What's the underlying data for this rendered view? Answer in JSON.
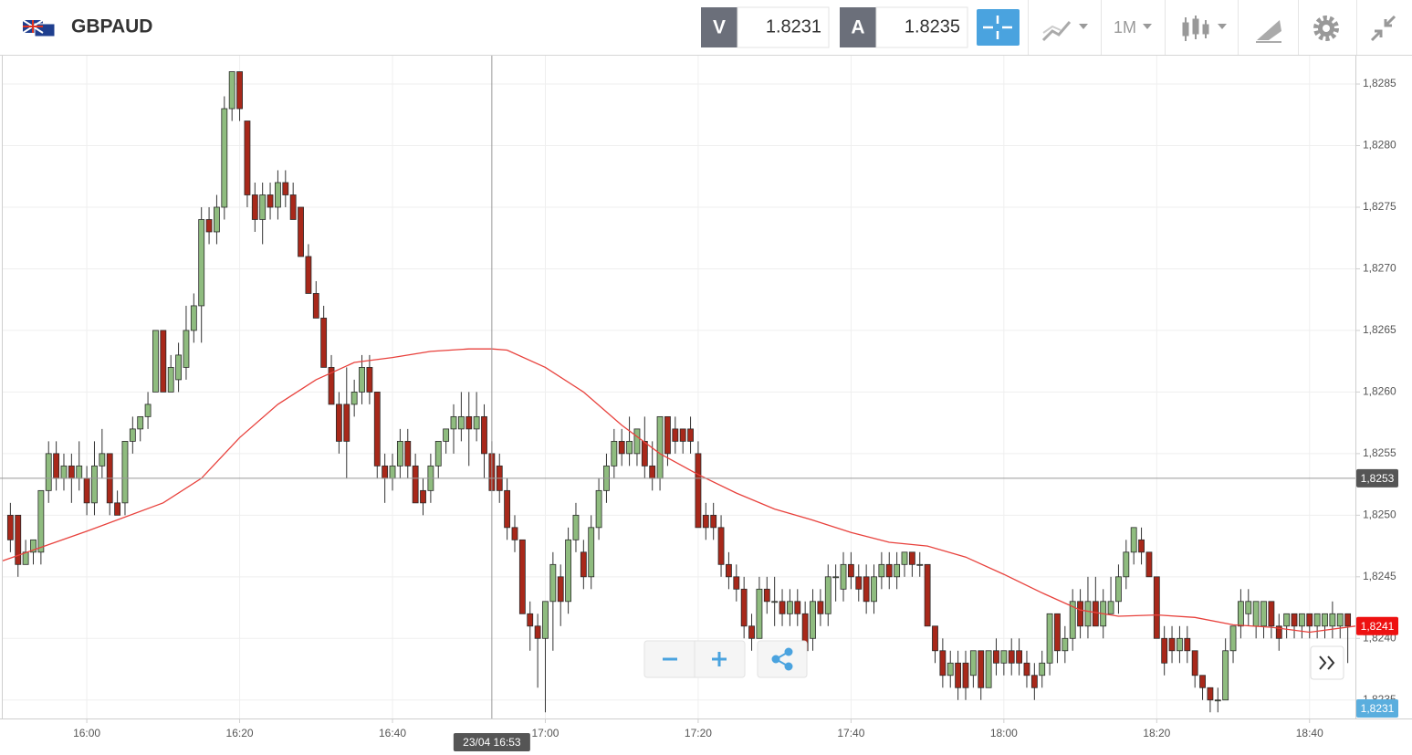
{
  "toolbar": {
    "symbol": "GBPAUD",
    "sell_label": "V",
    "sell_price": 1.8231,
    "buy_label": "A",
    "buy_price": 1.8235,
    "timeframe": "1M"
  },
  "chart_data": {
    "type": "candlestick",
    "up_color": "#8fbc7f",
    "down_color": "#a8281a",
    "grid": true,
    "xlim": [
      "15:49",
      "18:46"
    ],
    "ylim": [
      1.82335,
      1.82873
    ],
    "xticks": [
      "16:00",
      "16:20",
      "16:40",
      "17:00",
      "17:20",
      "17:40",
      "18:00",
      "18:20",
      "18:40"
    ],
    "yticks": [
      {
        "value": 1.8285,
        "label": "1,8285"
      },
      {
        "value": 1.828,
        "label": "1,8280"
      },
      {
        "value": 1.8275,
        "label": "1,8275"
      },
      {
        "value": 1.827,
        "label": "1,8270"
      },
      {
        "value": 1.8265,
        "label": "1,8265"
      },
      {
        "value": 1.826,
        "label": "1,8260"
      },
      {
        "value": 1.8255,
        "label": "1,8255"
      },
      {
        "value": 1.825,
        "label": "1,8250"
      },
      {
        "value": 1.8245,
        "label": "1,8245"
      },
      {
        "value": 1.824,
        "label": "1,8240"
      },
      {
        "value": 1.8235,
        "label": "1,8235"
      }
    ],
    "x": [
      "15:50",
      "15:51",
      "15:52",
      "15:53",
      "15:54",
      "15:55",
      "15:56",
      "15:57",
      "15:58",
      "15:59",
      "16:00",
      "16:01",
      "16:02",
      "16:03",
      "16:04",
      "16:05",
      "16:06",
      "16:07",
      "16:08",
      "16:09",
      "16:10",
      "16:11",
      "16:12",
      "16:13",
      "16:14",
      "16:15",
      "16:16",
      "16:17",
      "16:18",
      "16:19",
      "16:20",
      "16:21",
      "16:22",
      "16:23",
      "16:24",
      "16:25",
      "16:26",
      "16:27",
      "16:28",
      "16:29",
      "16:30",
      "16:31",
      "16:32",
      "16:33",
      "16:34",
      "16:35",
      "16:36",
      "16:37",
      "16:38",
      "16:39",
      "16:40",
      "16:41",
      "16:42",
      "16:43",
      "16:44",
      "16:45",
      "16:46",
      "16:47",
      "16:48",
      "16:49",
      "16:50",
      "16:51",
      "16:52",
      "16:53",
      "16:54",
      "16:55",
      "16:56",
      "16:57",
      "16:58",
      "16:59",
      "17:00",
      "17:01",
      "17:02",
      "17:03",
      "17:04",
      "17:05",
      "17:06",
      "17:07",
      "17:08",
      "17:09",
      "17:10",
      "17:11",
      "17:12",
      "17:13",
      "17:14",
      "17:15",
      "17:16",
      "17:17",
      "17:18",
      "17:19",
      "17:20",
      "17:21",
      "17:22",
      "17:23",
      "17:24",
      "17:25",
      "17:26",
      "17:27",
      "17:28",
      "17:29",
      "17:30",
      "17:31",
      "17:32",
      "17:33",
      "17:34",
      "17:35",
      "17:36",
      "17:37",
      "17:38",
      "17:39",
      "17:40",
      "17:41",
      "17:42",
      "17:43",
      "17:44",
      "17:45",
      "17:46",
      "17:47",
      "17:48",
      "17:49",
      "17:50",
      "17:51",
      "17:52",
      "17:53",
      "17:54",
      "17:55",
      "17:56",
      "17:57",
      "17:58",
      "17:59",
      "18:00",
      "18:01",
      "18:02",
      "18:03",
      "18:04",
      "18:05",
      "18:06",
      "18:07",
      "18:08",
      "18:09",
      "18:10",
      "18:11",
      "18:12",
      "18:13",
      "18:14",
      "18:15",
      "18:16",
      "18:17",
      "18:18",
      "18:19",
      "18:20",
      "18:21",
      "18:22",
      "18:23",
      "18:24",
      "18:25",
      "18:26",
      "18:27",
      "18:28",
      "18:29",
      "18:30",
      "18:31",
      "18:32",
      "18:33",
      "18:34",
      "18:35",
      "18:36",
      "18:37",
      "18:38",
      "18:39",
      "18:40",
      "18:41",
      "18:42",
      "18:43",
      "18:44",
      "18:45"
    ],
    "ohlc": [
      [
        1.825,
        1.8251,
        1.8247,
        1.8248
      ],
      [
        1.825,
        1.825,
        1.8245,
        1.8246
      ],
      [
        1.8246,
        1.8248,
        1.8246,
        1.8247
      ],
      [
        1.8247,
        1.8248,
        1.8246,
        1.8248
      ],
      [
        1.8247,
        1.8252,
        1.8246,
        1.8252
      ],
      [
        1.8252,
        1.8256,
        1.8251,
        1.8255
      ],
      [
        1.8255,
        1.8256,
        1.8252,
        1.8253
      ],
      [
        1.8253,
        1.8255,
        1.8252,
        1.8254
      ],
      [
        1.8254,
        1.8255,
        1.8251,
        1.8253
      ],
      [
        1.8253,
        1.8256,
        1.8252,
        1.8254
      ],
      [
        1.8253,
        1.8254,
        1.825,
        1.8251
      ],
      [
        1.8251,
        1.8256,
        1.825,
        1.8254
      ],
      [
        1.8254,
        1.8257,
        1.8253,
        1.8255
      ],
      [
        1.8255,
        1.8255,
        1.825,
        1.8251
      ],
      [
        1.8251,
        1.8252,
        1.825,
        1.825
      ],
      [
        1.8251,
        1.8256,
        1.825,
        1.8256
      ],
      [
        1.8256,
        1.8258,
        1.8255,
        1.8257
      ],
      [
        1.8257,
        1.8258,
        1.8256,
        1.8258
      ],
      [
        1.8258,
        1.826,
        1.8257,
        1.8259
      ],
      [
        1.826,
        1.8265,
        1.826,
        1.8265
      ],
      [
        1.8265,
        1.8265,
        1.826,
        1.826
      ],
      [
        1.826,
        1.8263,
        1.826,
        1.8262
      ],
      [
        1.8261,
        1.8264,
        1.826,
        1.8263
      ],
      [
        1.8262,
        1.8267,
        1.8261,
        1.8265
      ],
      [
        1.8265,
        1.8268,
        1.8264,
        1.8267
      ],
      [
        1.8267,
        1.8275,
        1.8264,
        1.8274
      ],
      [
        1.8274,
        1.8275,
        1.8272,
        1.8273
      ],
      [
        1.8273,
        1.8276,
        1.8272,
        1.8275
      ],
      [
        1.8275,
        1.8284,
        1.8274,
        1.8283
      ],
      [
        1.8283,
        1.8286,
        1.8282,
        1.8286
      ],
      [
        1.8286,
        1.8286,
        1.8282,
        1.8283
      ],
      [
        1.8282,
        1.8282,
        1.8275,
        1.8276
      ],
      [
        1.8276,
        1.8277,
        1.8273,
        1.8274
      ],
      [
        1.8274,
        1.8277,
        1.8272,
        1.8276
      ],
      [
        1.8276,
        1.8277,
        1.8274,
        1.8275
      ],
      [
        1.8275,
        1.8278,
        1.8274,
        1.8277
      ],
      [
        1.8277,
        1.8278,
        1.8275,
        1.8276
      ],
      [
        1.8276,
        1.8277,
        1.8274,
        1.8274
      ],
      [
        1.8275,
        1.8275,
        1.8271,
        1.8271
      ],
      [
        1.8271,
        1.8272,
        1.8268,
        1.8268
      ],
      [
        1.8268,
        1.8269,
        1.8266,
        1.8266
      ],
      [
        1.8266,
        1.8267,
        1.8262,
        1.8262
      ],
      [
        1.8262,
        1.8263,
        1.8259,
        1.8259
      ],
      [
        1.8259,
        1.826,
        1.8255,
        1.8256
      ],
      [
        1.8259,
        1.8262,
        1.8253,
        1.8256
      ],
      [
        1.8259,
        1.8261,
        1.8258,
        1.826
      ],
      [
        1.826,
        1.8263,
        1.8259,
        1.8262
      ],
      [
        1.8262,
        1.8263,
        1.8259,
        1.826
      ],
      [
        1.826,
        1.826,
        1.8253,
        1.8254
      ],
      [
        1.8254,
        1.8255,
        1.8251,
        1.8253
      ],
      [
        1.8253,
        1.8255,
        1.8252,
        1.8254
      ],
      [
        1.8254,
        1.8257,
        1.8253,
        1.8256
      ],
      [
        1.8256,
        1.8257,
        1.8253,
        1.8254
      ],
      [
        1.8254,
        1.8255,
        1.8251,
        1.8251
      ],
      [
        1.8252,
        1.8253,
        1.825,
        1.8251
      ],
      [
        1.8252,
        1.8255,
        1.8251,
        1.8254
      ],
      [
        1.8254,
        1.8256,
        1.8253,
        1.8256
      ],
      [
        1.8256,
        1.8257,
        1.8255,
        1.8257
      ],
      [
        1.8257,
        1.8259,
        1.8255,
        1.8258
      ],
      [
        1.8257,
        1.826,
        1.8256,
        1.8258
      ],
      [
        1.8258,
        1.826,
        1.8254,
        1.8257
      ],
      [
        1.8257,
        1.826,
        1.8256,
        1.8258
      ],
      [
        1.8258,
        1.8259,
        1.8253,
        1.8255
      ],
      [
        1.8255,
        1.8256,
        1.8252,
        1.8252
      ],
      [
        1.8254,
        1.8255,
        1.8251,
        1.8252
      ],
      [
        1.8252,
        1.8253,
        1.8248,
        1.8249
      ],
      [
        1.8249,
        1.825,
        1.8247,
        1.8248
      ],
      [
        1.8248,
        1.8248,
        1.8242,
        1.8242
      ],
      [
        1.8242,
        1.8243,
        1.8239,
        1.8241
      ],
      [
        1.8241,
        1.8242,
        1.8236,
        1.824
      ],
      [
        1.824,
        1.8243,
        1.8234,
        1.8243
      ],
      [
        1.8243,
        1.8247,
        1.8239,
        1.8246
      ],
      [
        1.8245,
        1.8246,
        1.8241,
        1.8243
      ],
      [
        1.8243,
        1.8249,
        1.8242,
        1.8248
      ],
      [
        1.8248,
        1.8251,
        1.8247,
        1.825
      ],
      [
        1.8247,
        1.8248,
        1.8244,
        1.8245
      ],
      [
        1.8245,
        1.825,
        1.8244,
        1.8249
      ],
      [
        1.8249,
        1.8253,
        1.8248,
        1.8252
      ],
      [
        1.8252,
        1.8255,
        1.8251,
        1.8254
      ],
      [
        1.8254,
        1.8257,
        1.8253,
        1.8256
      ],
      [
        1.8256,
        1.8257,
        1.8254,
        1.8255
      ],
      [
        1.8255,
        1.8258,
        1.8254,
        1.8256
      ],
      [
        1.8255,
        1.8257,
        1.8254,
        1.8257
      ],
      [
        1.8256,
        1.8258,
        1.8253,
        1.8254
      ],
      [
        1.8254,
        1.8256,
        1.8252,
        1.8253
      ],
      [
        1.8253,
        1.8258,
        1.8252,
        1.8258
      ],
      [
        1.8258,
        1.8258,
        1.8254,
        1.8255
      ],
      [
        1.8257,
        1.8258,
        1.8255,
        1.8256
      ],
      [
        1.8257,
        1.8257,
        1.8255,
        1.8256
      ],
      [
        1.8257,
        1.8258,
        1.8255,
        1.8256
      ],
      [
        1.8255,
        1.8256,
        1.8249,
        1.8249
      ],
      [
        1.825,
        1.8251,
        1.8248,
        1.8249
      ],
      [
        1.825,
        1.8251,
        1.8248,
        1.8249
      ],
      [
        1.8249,
        1.825,
        1.8245,
        1.8246
      ],
      [
        1.8246,
        1.8247,
        1.8244,
        1.8245
      ],
      [
        1.8245,
        1.8246,
        1.8243,
        1.8244
      ],
      [
        1.8244,
        1.8245,
        1.824,
        1.8241
      ],
      [
        1.8241,
        1.8242,
        1.8239,
        1.824
      ],
      [
        1.824,
        1.8245,
        1.824,
        1.8244
      ],
      [
        1.8244,
        1.8245,
        1.8242,
        1.8243
      ],
      [
        1.8243,
        1.8245,
        1.8241,
        1.8243
      ],
      [
        1.8243,
        1.8244,
        1.8241,
        1.8242
      ],
      [
        1.8242,
        1.8244,
        1.8241,
        1.8243
      ],
      [
        1.8243,
        1.8244,
        1.8241,
        1.8242
      ],
      [
        1.8242,
        1.8243,
        1.8239,
        1.8239
      ],
      [
        1.824,
        1.8244,
        1.8239,
        1.8243
      ],
      [
        1.8243,
        1.8244,
        1.8241,
        1.8242
      ],
      [
        1.8242,
        1.8246,
        1.8241,
        1.8245
      ],
      [
        1.8245,
        1.8246,
        1.8243,
        1.8245
      ],
      [
        1.8244,
        1.8247,
        1.8243,
        1.8246
      ],
      [
        1.8246,
        1.8247,
        1.8244,
        1.8245
      ],
      [
        1.8245,
        1.8246,
        1.8243,
        1.8244
      ],
      [
        1.8245,
        1.8246,
        1.8242,
        1.8243
      ],
      [
        1.8243,
        1.8246,
        1.8242,
        1.8245
      ],
      [
        1.8245,
        1.8247,
        1.8244,
        1.8246
      ],
      [
        1.8246,
        1.8247,
        1.8244,
        1.8245
      ],
      [
        1.8245,
        1.8247,
        1.8244,
        1.8246
      ],
      [
        1.8246,
        1.8247,
        1.8245,
        1.8247
      ],
      [
        1.8247,
        1.8247,
        1.8245,
        1.8246
      ],
      [
        1.8246,
        1.8247,
        1.8245,
        1.8246
      ],
      [
        1.8246,
        1.8246,
        1.8241,
        1.8241
      ],
      [
        1.8241,
        1.8241,
        1.8238,
        1.8239
      ],
      [
        1.8239,
        1.824,
        1.8236,
        1.8237
      ],
      [
        1.8237,
        1.8239,
        1.8236,
        1.8238
      ],
      [
        1.8238,
        1.8239,
        1.8235,
        1.8236
      ],
      [
        1.8238,
        1.8239,
        1.8235,
        1.8236
      ],
      [
        1.8237,
        1.8239,
        1.8236,
        1.8239
      ],
      [
        1.8239,
        1.8239,
        1.8235,
        1.8236
      ],
      [
        1.8236,
        1.8239,
        1.8236,
        1.8239
      ],
      [
        1.8239,
        1.824,
        1.8237,
        1.8238
      ],
      [
        1.8238,
        1.8239,
        1.8237,
        1.8239
      ],
      [
        1.8239,
        1.824,
        1.8237,
        1.8238
      ],
      [
        1.8239,
        1.824,
        1.8237,
        1.8238
      ],
      [
        1.8238,
        1.8239,
        1.8236,
        1.8237
      ],
      [
        1.8237,
        1.8238,
        1.8235,
        1.8236
      ],
      [
        1.8237,
        1.8239,
        1.8236,
        1.8238
      ],
      [
        1.8238,
        1.8242,
        1.8237,
        1.8242
      ],
      [
        1.8242,
        1.8242,
        1.8238,
        1.8239
      ],
      [
        1.8239,
        1.8241,
        1.8238,
        1.824
      ],
      [
        1.824,
        1.8244,
        1.8239,
        1.8243
      ],
      [
        1.8243,
        1.8244,
        1.824,
        1.8241
      ],
      [
        1.8241,
        1.8245,
        1.824,
        1.8243
      ],
      [
        1.8243,
        1.8245,
        1.8241,
        1.8241
      ],
      [
        1.8241,
        1.8244,
        1.824,
        1.8243
      ],
      [
        1.8242,
        1.8245,
        1.8242,
        1.8243
      ],
      [
        1.8243,
        1.8246,
        1.8242,
        1.8245
      ],
      [
        1.8245,
        1.8248,
        1.8244,
        1.8247
      ],
      [
        1.8247,
        1.8249,
        1.8246,
        1.8249
      ],
      [
        1.8248,
        1.8249,
        1.8246,
        1.8247
      ],
      [
        1.8247,
        1.8247,
        1.8245,
        1.8245
      ],
      [
        1.8245,
        1.8245,
        1.824,
        1.824
      ],
      [
        1.824,
        1.8241,
        1.8237,
        1.8238
      ],
      [
        1.824,
        1.8241,
        1.8238,
        1.8239
      ],
      [
        1.8239,
        1.8241,
        1.8238,
        1.824
      ],
      [
        1.824,
        1.8241,
        1.8238,
        1.8239
      ],
      [
        1.8239,
        1.8239,
        1.8236,
        1.8237
      ],
      [
        1.8237,
        1.8237,
        1.8235,
        1.8236
      ],
      [
        1.8236,
        1.8236,
        1.8234,
        1.8235
      ],
      [
        1.8235,
        1.8236,
        1.8234,
        1.8235
      ],
      [
        1.8235,
        1.824,
        1.8235,
        1.8239
      ],
      [
        1.8239,
        1.8241,
        1.8238,
        1.8241
      ],
      [
        1.8241,
        1.8244,
        1.824,
        1.8243
      ],
      [
        1.8242,
        1.8244,
        1.8241,
        1.8243
      ],
      [
        1.8241,
        1.8243,
        1.824,
        1.8243
      ],
      [
        1.8241,
        1.8243,
        1.824,
        1.8243
      ],
      [
        1.8243,
        1.8243,
        1.824,
        1.8241
      ],
      [
        1.8241,
        1.8242,
        1.8239,
        1.824
      ],
      [
        1.8241,
        1.8242,
        1.824,
        1.8242
      ],
      [
        1.8242,
        1.8242,
        1.824,
        1.8241
      ],
      [
        1.8241,
        1.8242,
        1.824,
        1.8242
      ],
      [
        1.8242,
        1.8242,
        1.824,
        1.8241
      ],
      [
        1.8241,
        1.8242,
        1.824,
        1.8242
      ],
      [
        1.8241,
        1.8242,
        1.824,
        1.8242
      ],
      [
        1.8241,
        1.8243,
        1.824,
        1.8242
      ],
      [
        1.8241,
        1.8242,
        1.824,
        1.8242
      ],
      [
        1.8242,
        1.8242,
        1.8238,
        1.8241
      ]
    ],
    "moving_average": {
      "color": "#e8413c",
      "x": [
        "15:49",
        "16:00",
        "16:10",
        "16:15",
        "16:20",
        "16:25",
        "16:30",
        "16:35",
        "16:40",
        "16:45",
        "16:50",
        "16:53",
        "16:55",
        "17:00",
        "17:05",
        "17:10",
        "17:15",
        "17:20",
        "17:25",
        "17:30",
        "17:35",
        "17:40",
        "17:45",
        "17:50",
        "17:55",
        "18:00",
        "18:05",
        "18:10",
        "18:15",
        "18:20",
        "18:25",
        "18:30",
        "18:35",
        "18:40",
        "18:46"
      ],
      "values": [
        1.82463,
        1.82487,
        1.8251,
        1.8253,
        1.82563,
        1.8259,
        1.8261,
        1.82624,
        1.82628,
        1.82633,
        1.82635,
        1.82635,
        1.82634,
        1.8262,
        1.826,
        1.82573,
        1.8255,
        1.82533,
        1.82518,
        1.82505,
        1.82496,
        1.82486,
        1.82478,
        1.82475,
        1.82466,
        1.82452,
        1.82437,
        1.82423,
        1.82418,
        1.82419,
        1.82417,
        1.82411,
        1.82409,
        1.82405,
        1.8241
      ]
    },
    "crosshair": {
      "x": "16:53",
      "label": "23/04 16:53",
      "y": {
        "value": 1.8253,
        "label": "1,8253"
      }
    },
    "last_price": {
      "value": 1.8241,
      "label": "1,8241",
      "color": "#ee1111"
    },
    "bid_price": {
      "value": 1.8231,
      "label": "1,8231",
      "color": "#5aaede"
    }
  }
}
